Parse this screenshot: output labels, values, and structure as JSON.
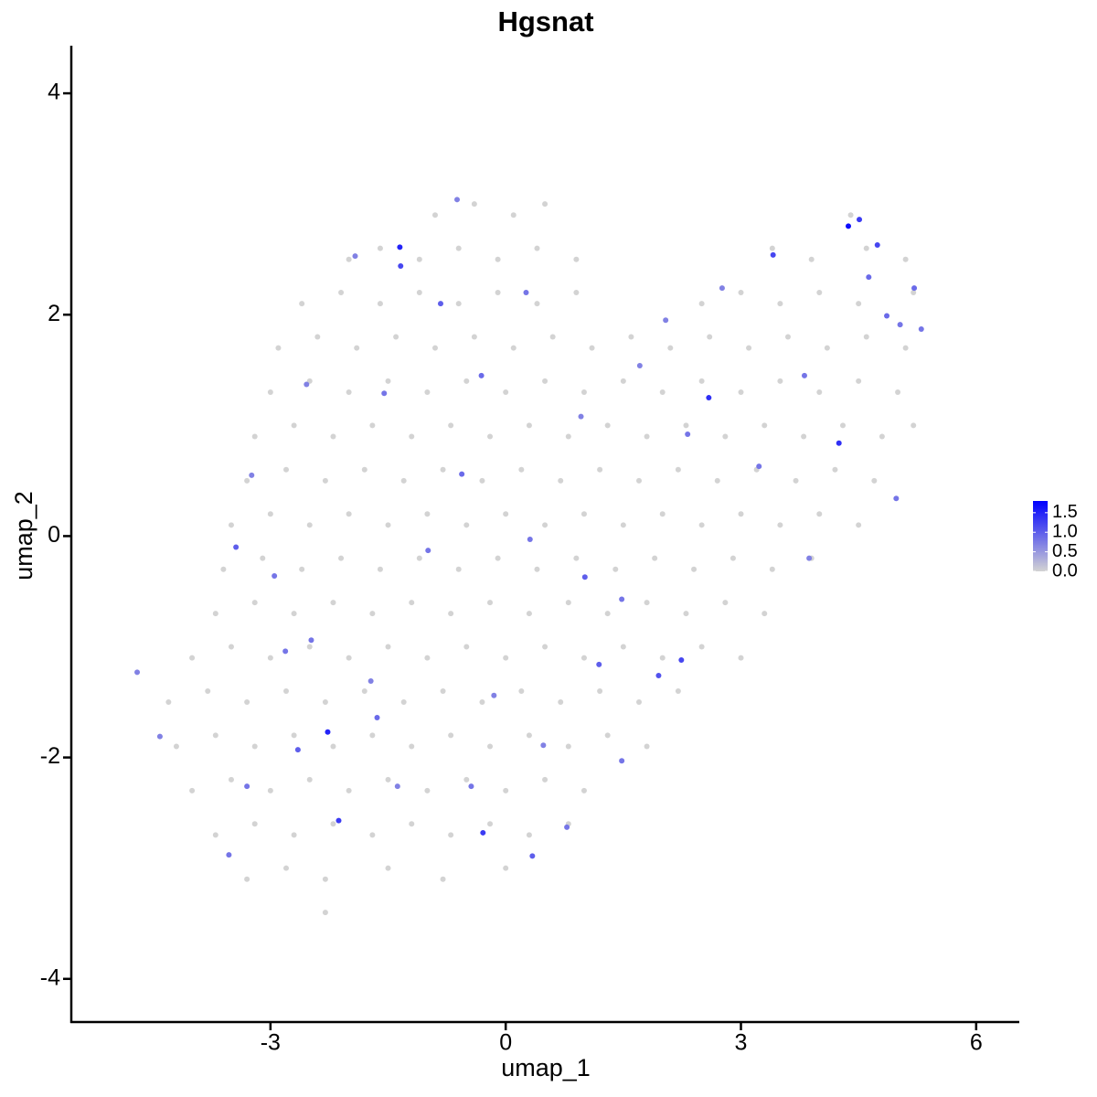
{
  "chart_data": {
    "type": "scatter",
    "title": "Hgsnat",
    "x_label": "umap_1",
    "y_label": "umap_2",
    "xlim": [
      -5.54,
      6.55
    ],
    "ylim": [
      -4.39,
      4.43
    ],
    "xticks": [
      -3,
      0,
      3,
      6
    ],
    "yticks": [
      -4,
      -2,
      0,
      2,
      4
    ],
    "x": [
      -0.9,
      -0.4,
      0.1,
      0.5,
      4.4,
      -2.0,
      -1.6,
      -1.1,
      -0.6,
      -0.1,
      0.4,
      0.9,
      3.4,
      3.9,
      4.6,
      5.1,
      -2.6,
      -2.1,
      -1.6,
      -1.1,
      -0.6,
      -0.1,
      0.4,
      0.9,
      2.5,
      3.0,
      3.5,
      4.0,
      4.5,
      5.2,
      -2.9,
      -2.4,
      -1.9,
      -1.4,
      -0.9,
      -0.4,
      0.1,
      0.6,
      1.1,
      1.6,
      2.1,
      2.6,
      3.1,
      3.6,
      4.1,
      4.6,
      5.1,
      -3.0,
      -2.5,
      -2.0,
      -1.5,
      -1.0,
      -0.5,
      0.0,
      0.5,
      1.0,
      1.5,
      2.0,
      2.5,
      3.0,
      3.5,
      4.0,
      4.5,
      5.0,
      -3.2,
      -2.7,
      -2.2,
      -1.7,
      -1.2,
      -0.7,
      -0.2,
      0.3,
      0.8,
      1.3,
      1.8,
      2.3,
      2.8,
      3.3,
      3.8,
      4.3,
      4.8,
      5.2,
      -3.3,
      -2.8,
      -2.3,
      -1.8,
      -1.3,
      -0.8,
      -0.3,
      0.2,
      0.7,
      1.2,
      1.7,
      2.2,
      2.7,
      3.2,
      3.7,
      4.2,
      4.7,
      -3.5,
      -3.0,
      -2.5,
      -2.0,
      -1.5,
      -1.0,
      -0.5,
      0.0,
      0.5,
      1.0,
      1.5,
      2.0,
      2.5,
      3.0,
      3.5,
      4.0,
      4.5,
      -3.6,
      -3.1,
      -2.6,
      -2.1,
      -1.6,
      -1.1,
      -0.6,
      -0.1,
      0.4,
      0.9,
      1.4,
      1.9,
      2.4,
      2.9,
      3.4,
      3.9,
      -3.7,
      -3.2,
      -2.7,
      -2.2,
      -1.7,
      -1.2,
      -0.7,
      -0.2,
      0.3,
      0.8,
      1.3,
      1.8,
      2.3,
      2.8,
      3.3,
      -4.0,
      -3.5,
      -3.0,
      -2.5,
      -2.0,
      -1.5,
      -1.0,
      -0.5,
      0.0,
      0.5,
      1.0,
      1.5,
      2.0,
      2.5,
      3.0,
      -4.3,
      -3.8,
      -3.3,
      -2.8,
      -2.3,
      -1.8,
      -1.3,
      -0.8,
      -0.3,
      0.2,
      0.7,
      1.2,
      1.7,
      2.2,
      -4.2,
      -3.7,
      -3.2,
      -2.7,
      -2.2,
      -1.7,
      -1.2,
      -0.7,
      -0.2,
      0.3,
      0.8,
      1.3,
      1.8,
      -4.0,
      -3.5,
      -3.0,
      -2.5,
      -2.0,
      -1.5,
      -1.0,
      -0.5,
      0.0,
      0.5,
      1.0,
      -3.7,
      -3.2,
      -2.7,
      -2.2,
      -1.7,
      -1.2,
      -0.7,
      -0.2,
      0.3,
      0.8,
      -3.3,
      -2.8,
      -2.3,
      -1.5,
      -0.8,
      0.0,
      -2.3,
      4.37,
      -1.35,
      -1.34,
      4.51,
      4.74,
      4.25,
      2.59,
      -2.27,
      -2.13,
      -0.29,
      0.34,
      2.24,
      1.95,
      1.19,
      1.01,
      -0.56,
      -0.31,
      -0.83,
      0.26,
      -3.44,
      -1.64,
      -2.65,
      3.41,
      3.81,
      4.86,
      5.21,
      5.3,
      5.03,
      4.63,
      1.48,
      0.31,
      -0.99,
      -2.48,
      -2.95,
      -3.3,
      -3.53,
      -4.41,
      -4.7,
      0.78,
      1.48,
      3.23,
      4.98,
      3.87,
      2.32,
      1.71,
      0.96,
      -1.55,
      -2.54,
      -3.24,
      -2.81,
      -1.38,
      -0.44,
      0.48,
      2.76,
      2.04,
      -1.92,
      -0.62,
      -1.72,
      -0.15
    ],
    "y": [
      2.9,
      3.0,
      2.9,
      3.0,
      2.9,
      2.5,
      2.6,
      2.5,
      2.6,
      2.5,
      2.6,
      2.5,
      2.6,
      2.5,
      2.6,
      2.5,
      2.1,
      2.2,
      2.1,
      2.2,
      2.1,
      2.2,
      2.1,
      2.2,
      2.1,
      2.2,
      2.1,
      2.2,
      2.1,
      2.2,
      1.7,
      1.8,
      1.7,
      1.8,
      1.7,
      1.8,
      1.7,
      1.8,
      1.7,
      1.8,
      1.7,
      1.8,
      1.7,
      1.8,
      1.7,
      1.8,
      1.7,
      1.3,
      1.4,
      1.3,
      1.4,
      1.3,
      1.4,
      1.3,
      1.4,
      1.3,
      1.4,
      1.3,
      1.4,
      1.3,
      1.4,
      1.3,
      1.4,
      1.3,
      0.9,
      1.0,
      0.9,
      1.0,
      0.9,
      1.0,
      0.9,
      1.0,
      0.9,
      1.0,
      0.9,
      1.0,
      0.9,
      1.0,
      0.9,
      1.0,
      0.9,
      1.0,
      0.5,
      0.6,
      0.5,
      0.6,
      0.5,
      0.6,
      0.5,
      0.6,
      0.5,
      0.6,
      0.5,
      0.6,
      0.5,
      0.6,
      0.5,
      0.6,
      0.5,
      0.1,
      0.2,
      0.1,
      0.2,
      0.1,
      0.2,
      0.1,
      0.2,
      0.1,
      0.2,
      0.1,
      0.2,
      0.1,
      0.2,
      0.1,
      0.2,
      0.1,
      -0.3,
      -0.2,
      -0.3,
      -0.2,
      -0.3,
      -0.2,
      -0.3,
      -0.2,
      -0.3,
      -0.2,
      -0.3,
      -0.2,
      -0.3,
      -0.2,
      -0.3,
      -0.2,
      -0.7,
      -0.6,
      -0.7,
      -0.6,
      -0.7,
      -0.6,
      -0.7,
      -0.6,
      -0.7,
      -0.6,
      -0.7,
      -0.6,
      -0.7,
      -0.6,
      -0.7,
      -1.1,
      -1.0,
      -1.1,
      -1.0,
      -1.1,
      -1.0,
      -1.1,
      -1.0,
      -1.1,
      -1.0,
      -1.1,
      -1.0,
      -1.1,
      -1.0,
      -1.1,
      -1.5,
      -1.4,
      -1.5,
      -1.4,
      -1.5,
      -1.4,
      -1.5,
      -1.4,
      -1.5,
      -1.4,
      -1.5,
      -1.4,
      -1.5,
      -1.4,
      -1.9,
      -1.8,
      -1.9,
      -1.8,
      -1.9,
      -1.8,
      -1.9,
      -1.8,
      -1.9,
      -1.8,
      -1.9,
      -1.8,
      -1.9,
      -2.3,
      -2.2,
      -2.3,
      -2.2,
      -2.3,
      -2.2,
      -2.3,
      -2.2,
      -2.3,
      -2.2,
      -2.3,
      -2.7,
      -2.6,
      -2.7,
      -2.6,
      -2.7,
      -2.6,
      -2.7,
      -2.6,
      -2.7,
      -2.6,
      -3.1,
      -3.0,
      -3.1,
      -3.0,
      -3.1,
      -3.0,
      -3.4,
      2.8,
      2.61,
      2.44,
      2.86,
      2.63,
      0.84,
      1.25,
      -1.77,
      -2.57,
      -2.68,
      -2.89,
      -1.12,
      -1.26,
      -1.16,
      -0.37,
      0.56,
      1.45,
      2.1,
      2.2,
      -0.1,
      -1.64,
      -1.93,
      2.54,
      1.45,
      1.99,
      2.24,
      1.87,
      1.91,
      2.34,
      -0.57,
      -0.03,
      -0.13,
      -0.94,
      -0.36,
      -2.26,
      -2.88,
      -1.81,
      -1.23,
      -2.63,
      -2.03,
      0.63,
      0.34,
      -0.2,
      0.92,
      1.54,
      1.08,
      1.29,
      1.37,
      0.55,
      -1.04,
      -2.26,
      -2.26,
      -1.89,
      2.24,
      1.95,
      2.53,
      3.04,
      -1.31,
      -1.44
    ],
    "values": [
      0,
      0,
      0,
      0,
      0,
      0,
      0,
      0,
      0,
      0,
      0,
      0,
      0,
      0,
      0,
      0,
      0,
      0,
      0,
      0,
      0,
      0,
      0,
      0,
      0,
      0,
      0,
      0,
      0,
      0,
      0,
      0,
      0,
      0,
      0,
      0,
      0,
      0,
      0,
      0,
      0,
      0,
      0,
      0,
      0,
      0,
      0,
      0,
      0,
      0,
      0,
      0,
      0,
      0,
      0,
      0,
      0,
      0,
      0,
      0,
      0,
      0,
      0,
      0,
      0,
      0,
      0,
      0,
      0,
      0,
      0,
      0,
      0,
      0,
      0,
      0,
      0,
      0,
      0,
      0,
      0,
      0,
      0,
      0,
      0,
      0,
      0,
      0,
      0,
      0,
      0,
      0,
      0,
      0,
      0,
      0,
      0,
      0,
      0,
      0,
      0,
      0,
      0,
      0,
      0,
      0,
      0,
      0,
      0,
      0,
      0,
      0,
      0,
      0,
      0,
      0,
      0,
      0,
      0,
      0,
      0,
      0,
      0,
      0,
      0,
      0,
      0,
      0,
      0,
      0,
      0,
      0,
      0,
      0,
      0,
      0,
      0,
      0,
      0,
      0,
      0,
      0,
      0,
      0,
      0,
      0,
      0,
      0,
      0,
      0,
      0,
      0,
      0,
      0,
      0,
      0,
      0,
      0,
      0,
      0,
      0,
      0,
      0,
      0,
      0,
      0,
      0,
      0,
      0,
      0,
      0,
      0,
      0,
      0,
      0,
      0,
      0,
      0,
      0,
      0,
      0,
      0,
      0,
      0,
      0,
      0,
      0,
      0,
      0,
      0,
      0,
      0,
      0,
      0,
      0,
      0,
      0,
      0,
      0,
      0,
      0,
      0,
      0,
      0,
      0,
      0,
      0,
      0,
      0,
      0,
      0,
      0,
      0,
      0,
      0,
      0,
      0,
      1.7,
      1.5,
      1.2,
      1.3,
      1.2,
      1.4,
      1.4,
      1.5,
      1.3,
      1.3,
      1.0,
      1.2,
      1.1,
      1.0,
      1.0,
      0.9,
      0.9,
      1.0,
      0.8,
      1.0,
      0.9,
      1.0,
      1.2,
      0.8,
      0.9,
      0.9,
      0.8,
      0.8,
      0.9,
      0.8,
      0.8,
      0.8,
      0.8,
      0.8,
      0.8,
      0.8,
      0.7,
      0.7,
      0.8,
      0.8,
      0.8,
      0.8,
      0.7,
      0.8,
      0.7,
      0.7,
      0.8,
      0.7,
      0.7,
      0.8,
      0.7,
      0.8,
      0.7,
      0.7,
      0.7,
      0.7,
      0.7,
      0.7,
      0.7
    ],
    "colorbar": {
      "colors": [
        "#d3d3d3",
        "#0000ff"
      ],
      "lim": [
        0,
        1.8
      ],
      "ticks": [
        {
          "value": 0,
          "label": "0.0"
        },
        0.5,
        {
          "value": 1,
          "label": "1.0"
        },
        1.5
      ]
    }
  }
}
